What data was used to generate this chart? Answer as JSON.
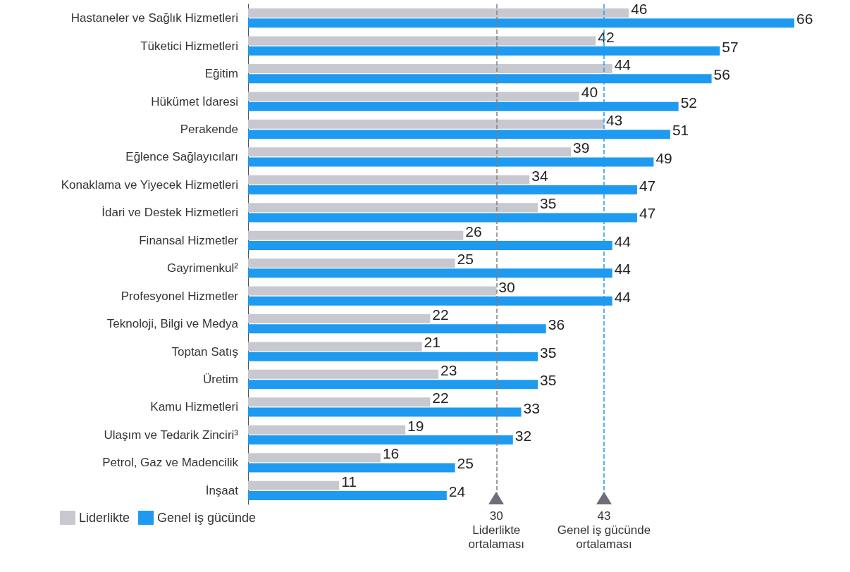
{
  "chart_data": {
    "type": "bar",
    "orientation": "horizontal",
    "categories": [
      "Hastaneler ve Sağlık Hizmetleri",
      "Tüketici Hizmetleri",
      "Eğitim",
      "Hükümet İdaresi",
      "Perakende",
      "Eğlence Sağlayıcıları",
      "Konaklama ve Yiyecek Hizmetleri",
      "İdari ve Destek Hizmetleri",
      "Finansal Hizmetler",
      "Gayrimenkul²",
      "Profesyonel Hizmetler",
      "Teknoloji, Bilgi ve Medya",
      "Toptan Satış",
      "Üretim",
      "Kamu Hizmetleri",
      "Ulaşım ve Tedarik Zinciri³",
      "Petrol, Gaz ve Madencilik",
      "İnşaat"
    ],
    "series": [
      {
        "name": "Liderlikte",
        "color": "#c8c8d0",
        "values": [
          46,
          42,
          44,
          40,
          43,
          39,
          34,
          35,
          26,
          25,
          30,
          22,
          21,
          23,
          22,
          19,
          16,
          11
        ]
      },
      {
        "name": "Genel iş gücünde",
        "color": "#1e9bf0",
        "values": [
          66,
          57,
          56,
          52,
          51,
          49,
          47,
          47,
          44,
          44,
          44,
          36,
          35,
          35,
          33,
          32,
          25,
          24
        ]
      }
    ],
    "data_labels": true,
    "legend": "bottom left",
    "ref_lines": [
      {
        "axis": "x",
        "value": 30,
        "label": "30\nLiderlikte\nortalaması",
        "color": "#808080",
        "line_style": "dashed"
      },
      {
        "axis": "x",
        "value": 43,
        "label": "43\nGenel iş gücünde\nortalaması",
        "color": "#1e9bf0",
        "line_style": "dashed"
      }
    ]
  }
}
